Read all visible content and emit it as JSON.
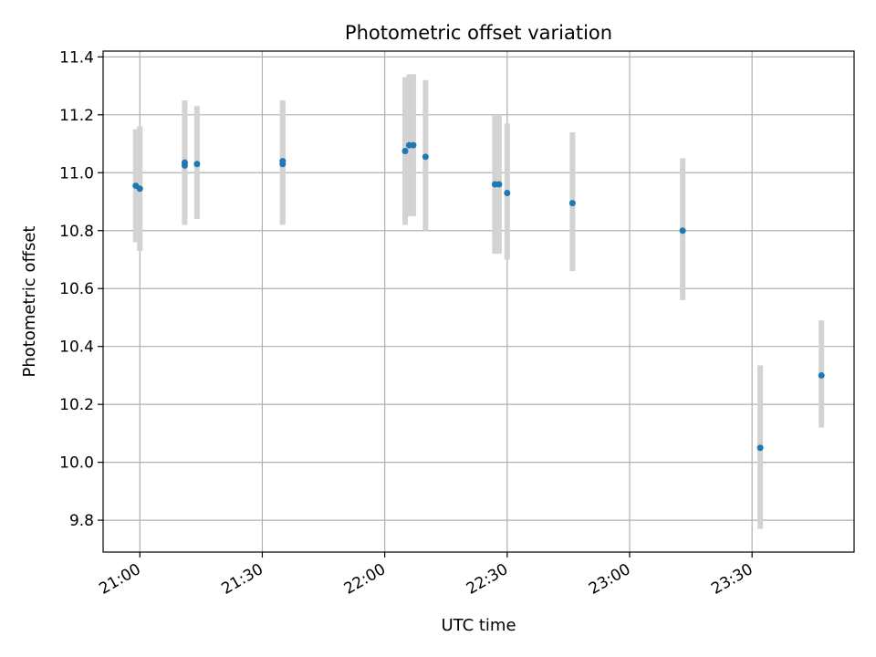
{
  "chart_data": {
    "type": "scatter",
    "title": "Photometric offset variation",
    "xlabel": "UTC time",
    "ylabel": "Photometric offset",
    "x_axis": "time",
    "xlim": [
      "20:51",
      "23:55"
    ],
    "ylim": [
      9.69,
      11.42
    ],
    "x_ticks": [
      "21:00",
      "21:30",
      "22:00",
      "22:30",
      "23:00",
      "23:30"
    ],
    "y_ticks": [
      "9.8",
      "10.0",
      "10.2",
      "10.4",
      "10.6",
      "10.8",
      "11.0",
      "11.2",
      "11.4"
    ],
    "grid": true,
    "colors": {
      "point": "#1f77b4",
      "errorbar": "#d3d3d3",
      "grid": "#b0b0b0"
    },
    "points": [
      {
        "x": "20:59",
        "y": 10.955,
        "ylow": 10.76,
        "yhigh": 11.15
      },
      {
        "x": "21:00",
        "y": 10.945,
        "ylow": 10.73,
        "yhigh": 11.16
      },
      {
        "x": "21:11",
        "y": 11.035,
        "ylow": 10.82,
        "yhigh": 11.25
      },
      {
        "x": "21:11",
        "y": 11.025,
        "ylow": 10.82,
        "yhigh": 11.24
      },
      {
        "x": "21:14",
        "y": 11.03,
        "ylow": 10.84,
        "yhigh": 11.23
      },
      {
        "x": "21:35",
        "y": 11.04,
        "ylow": 10.83,
        "yhigh": 11.25
      },
      {
        "x": "21:35",
        "y": 11.03,
        "ylow": 10.82,
        "yhigh": 11.24
      },
      {
        "x": "22:05",
        "y": 11.075,
        "ylow": 10.82,
        "yhigh": 11.33
      },
      {
        "x": "22:06",
        "y": 11.095,
        "ylow": 10.85,
        "yhigh": 11.34
      },
      {
        "x": "22:07",
        "y": 11.095,
        "ylow": 10.85,
        "yhigh": 11.34
      },
      {
        "x": "22:10",
        "y": 11.055,
        "ylow": 10.8,
        "yhigh": 11.32
      },
      {
        "x": "22:27",
        "y": 10.96,
        "ylow": 10.72,
        "yhigh": 11.2
      },
      {
        "x": "22:28",
        "y": 10.96,
        "ylow": 10.72,
        "yhigh": 11.2
      },
      {
        "x": "22:30",
        "y": 10.93,
        "ylow": 10.7,
        "yhigh": 11.17
      },
      {
        "x": "22:46",
        "y": 10.895,
        "ylow": 10.66,
        "yhigh": 11.14
      },
      {
        "x": "23:13",
        "y": 10.8,
        "ylow": 10.56,
        "yhigh": 11.05
      },
      {
        "x": "23:32",
        "y": 10.05,
        "ylow": 9.77,
        "yhigh": 10.335
      },
      {
        "x": "23:47",
        "y": 10.3,
        "ylow": 10.12,
        "yhigh": 10.49
      }
    ]
  }
}
